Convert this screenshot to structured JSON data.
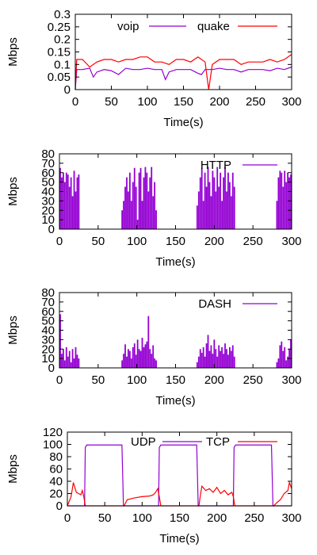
{
  "chart_data": [
    {
      "type": "line",
      "xlabel": "Time(s)",
      "ylabel": "Mbps",
      "xlim": [
        0,
        300
      ],
      "ylim": [
        0,
        0.3
      ],
      "xticks": [
        0,
        50,
        100,
        150,
        200,
        250,
        300
      ],
      "yticks": [
        0,
        0.05,
        0.1,
        0.15,
        0.2,
        0.25,
        0.3
      ],
      "ytick_labels": [
        "0",
        "0.05",
        "0.1",
        "0.15",
        "0.2",
        "0.25",
        "0.3"
      ],
      "legend_position": "top",
      "series": [
        {
          "name": "voip",
          "color": "#9400d3",
          "x": [
            0,
            2,
            10,
            20,
            25,
            30,
            40,
            50,
            60,
            70,
            80,
            90,
            100,
            110,
            120,
            125,
            130,
            140,
            150,
            160,
            170,
            175,
            180,
            190,
            200,
            210,
            220,
            230,
            240,
            250,
            260,
            270,
            280,
            290,
            300
          ],
          "y": [
            0,
            0.08,
            0.08,
            0.085,
            0.05,
            0.07,
            0.08,
            0.075,
            0.06,
            0.085,
            0.08,
            0.08,
            0.085,
            0.08,
            0.08,
            0.04,
            0.07,
            0.08,
            0.08,
            0.08,
            0.065,
            0.06,
            0.08,
            0.08,
            0.085,
            0.08,
            0.08,
            0.07,
            0.08,
            0.08,
            0.08,
            0.075,
            0.085,
            0.08,
            0.09
          ]
        },
        {
          "name": "quake",
          "color": "#ff0000",
          "x": [
            0,
            2,
            10,
            20,
            30,
            40,
            50,
            60,
            70,
            80,
            90,
            100,
            110,
            120,
            130,
            140,
            150,
            160,
            170,
            180,
            185,
            190,
            200,
            210,
            220,
            230,
            240,
            250,
            260,
            270,
            280,
            290,
            300
          ],
          "y": [
            0,
            0.12,
            0.12,
            0.09,
            0.11,
            0.12,
            0.12,
            0.11,
            0.12,
            0.12,
            0.13,
            0.13,
            0.11,
            0.11,
            0.1,
            0.12,
            0.12,
            0.11,
            0.13,
            0.11,
            0,
            0.1,
            0.12,
            0.12,
            0.12,
            0.1,
            0.11,
            0.11,
            0.11,
            0.12,
            0.11,
            0.12,
            0.14
          ]
        }
      ]
    },
    {
      "type": "bar",
      "xlabel": "Time(s)",
      "ylabel": "Mbps",
      "xlim": [
        0,
        300
      ],
      "ylim": [
        0,
        80
      ],
      "xticks": [
        0,
        50,
        100,
        150,
        200,
        250,
        300
      ],
      "yticks": [
        0,
        10,
        20,
        30,
        40,
        50,
        60,
        70,
        80
      ],
      "legend_position": "top-right",
      "series": [
        {
          "name": "HTTP",
          "color": "#9400d3",
          "x": [
            1,
            3,
            5,
            7,
            9,
            11,
            13,
            15,
            17,
            19,
            21,
            23,
            25,
            81,
            83,
            85,
            87,
            89,
            91,
            93,
            95,
            97,
            99,
            101,
            103,
            105,
            107,
            109,
            111,
            113,
            115,
            117,
            119,
            121,
            123,
            125,
            178,
            180,
            182,
            184,
            186,
            188,
            190,
            192,
            194,
            196,
            198,
            200,
            202,
            204,
            206,
            208,
            210,
            212,
            214,
            216,
            218,
            220,
            222,
            224,
            226,
            281,
            283,
            285,
            287,
            289,
            291,
            293,
            295,
            297,
            299
          ],
          "y": [
            65,
            55,
            60,
            50,
            60,
            58,
            45,
            55,
            35,
            62,
            40,
            55,
            58,
            20,
            30,
            45,
            55,
            40,
            60,
            30,
            50,
            65,
            45,
            10,
            60,
            65,
            30,
            55,
            66,
            60,
            40,
            55,
            66,
            35,
            50,
            20,
            25,
            40,
            55,
            65,
            30,
            60,
            45,
            66,
            50,
            35,
            62,
            55,
            40,
            66,
            45,
            60,
            30,
            55,
            66,
            40,
            60,
            50,
            35,
            60,
            45,
            30,
            55,
            62,
            60,
            45,
            62,
            50,
            60,
            55,
            58
          ]
        }
      ]
    },
    {
      "type": "bar",
      "xlabel": "Time(s)",
      "ylabel": "Mbps",
      "xlim": [
        0,
        300
      ],
      "ylim": [
        0,
        80
      ],
      "xticks": [
        0,
        50,
        100,
        150,
        200,
        250,
        300
      ],
      "yticks": [
        0,
        10,
        20,
        30,
        40,
        50,
        60,
        70,
        80
      ],
      "legend_position": "top-right",
      "series": [
        {
          "name": "DASH",
          "color": "#9400d3",
          "x": [
            1,
            3,
            5,
            7,
            9,
            11,
            13,
            15,
            17,
            19,
            21,
            23,
            25,
            81,
            83,
            85,
            87,
            89,
            91,
            93,
            95,
            97,
            99,
            101,
            103,
            105,
            107,
            109,
            111,
            113,
            115,
            117,
            119,
            121,
            123,
            125,
            178,
            180,
            182,
            184,
            186,
            188,
            190,
            192,
            194,
            196,
            198,
            200,
            202,
            204,
            206,
            208,
            210,
            212,
            214,
            216,
            218,
            220,
            222,
            224,
            226,
            281,
            283,
            285,
            287,
            289,
            291,
            293,
            295,
            297,
            299
          ],
          "y": [
            57,
            15,
            20,
            8,
            22,
            12,
            18,
            6,
            20,
            10,
            22,
            14,
            10,
            8,
            15,
            25,
            12,
            20,
            18,
            10,
            22,
            26,
            14,
            30,
            20,
            18,
            32,
            22,
            25,
            28,
            55,
            20,
            15,
            24,
            10,
            8,
            6,
            12,
            20,
            16,
            22,
            12,
            26,
            35,
            18,
            24,
            15,
            30,
            20,
            12,
            24,
            18,
            22,
            15,
            26,
            20,
            14,
            22,
            18,
            24,
            12,
            6,
            10,
            24,
            28,
            18,
            22,
            8,
            12,
            20,
            30
          ]
        }
      ]
    },
    {
      "type": "line",
      "xlabel": "Time(s)",
      "ylabel": "Mbps",
      "xlim": [
        0,
        300
      ],
      "ylim": [
        0,
        120
      ],
      "xticks": [
        0,
        50,
        100,
        150,
        200,
        250,
        300
      ],
      "yticks": [
        0,
        20,
        40,
        60,
        80,
        100,
        120
      ],
      "legend_position": "top",
      "series": [
        {
          "name": "UDP",
          "color": "#9400d3",
          "x": [
            0,
            23,
            24,
            26,
            50,
            73,
            74,
            75,
            122,
            123,
            125,
            150,
            173,
            174,
            175,
            222,
            223,
            225,
            250,
            273,
            274,
            275,
            300
          ],
          "y": [
            0,
            0,
            95,
            99,
            99,
            99,
            50,
            0,
            0,
            95,
            99,
            99,
            99,
            50,
            0,
            0,
            95,
            99,
            99,
            99,
            50,
            0,
            0
          ]
        },
        {
          "name": "TCP",
          "color": "#ff0000",
          "x": [
            0,
            5,
            8,
            10,
            12,
            15,
            18,
            20,
            22,
            24,
            76,
            80,
            90,
            100,
            110,
            115,
            118,
            121,
            123,
            125,
            176,
            178,
            180,
            185,
            190,
            195,
            200,
            205,
            210,
            215,
            220,
            222,
            224,
            276,
            280,
            285,
            290,
            295,
            297,
            300
          ],
          "y": [
            0,
            15,
            38,
            30,
            22,
            20,
            18,
            25,
            15,
            0,
            0,
            10,
            13,
            15,
            16,
            18,
            22,
            28,
            15,
            0,
            0,
            18,
            32,
            25,
            28,
            22,
            30,
            20,
            25,
            18,
            22,
            15,
            0,
            0,
            5,
            10,
            20,
            25,
            38,
            28
          ]
        }
      ]
    }
  ]
}
